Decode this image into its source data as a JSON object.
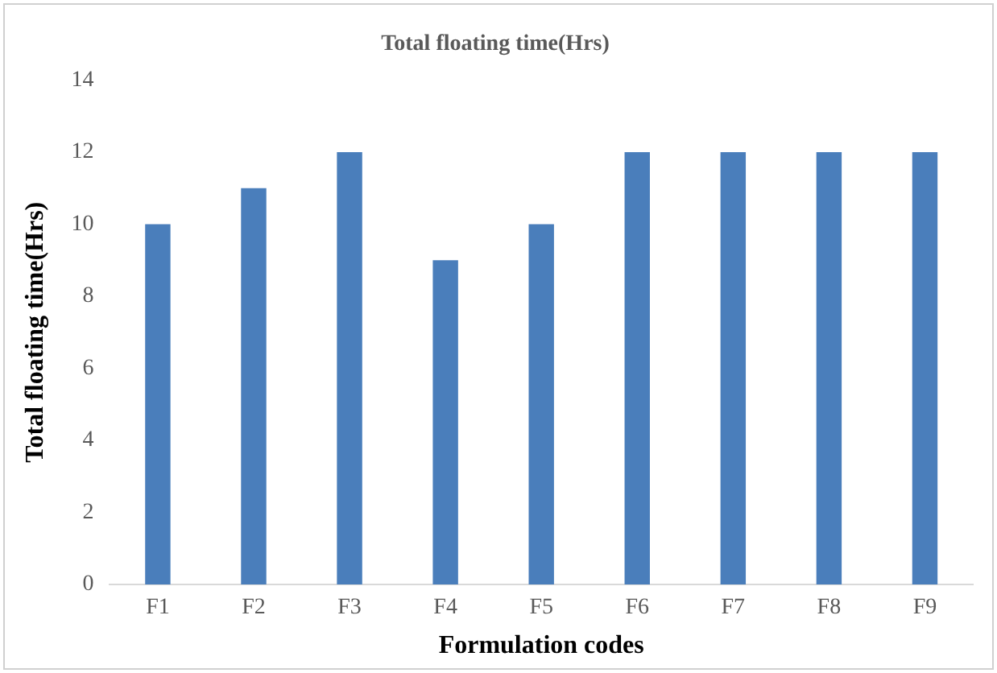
{
  "chart_data": {
    "type": "bar",
    "title": "Total floating time(Hrs)",
    "xlabel": "Formulation codes",
    "ylabel": "Total floating time(Hrs)",
    "categories": [
      "F1",
      "F2",
      "F3",
      "F4",
      "F5",
      "F6",
      "F7",
      "F8",
      "F9"
    ],
    "values": [
      10,
      11,
      12,
      9,
      10,
      12,
      12,
      12,
      12
    ],
    "color": "#4a7ebb",
    "ylim": [
      0,
      14
    ],
    "yticks": [
      0,
      2,
      4,
      6,
      8,
      10,
      12,
      14
    ],
    "grid": false,
    "legend": false
  }
}
